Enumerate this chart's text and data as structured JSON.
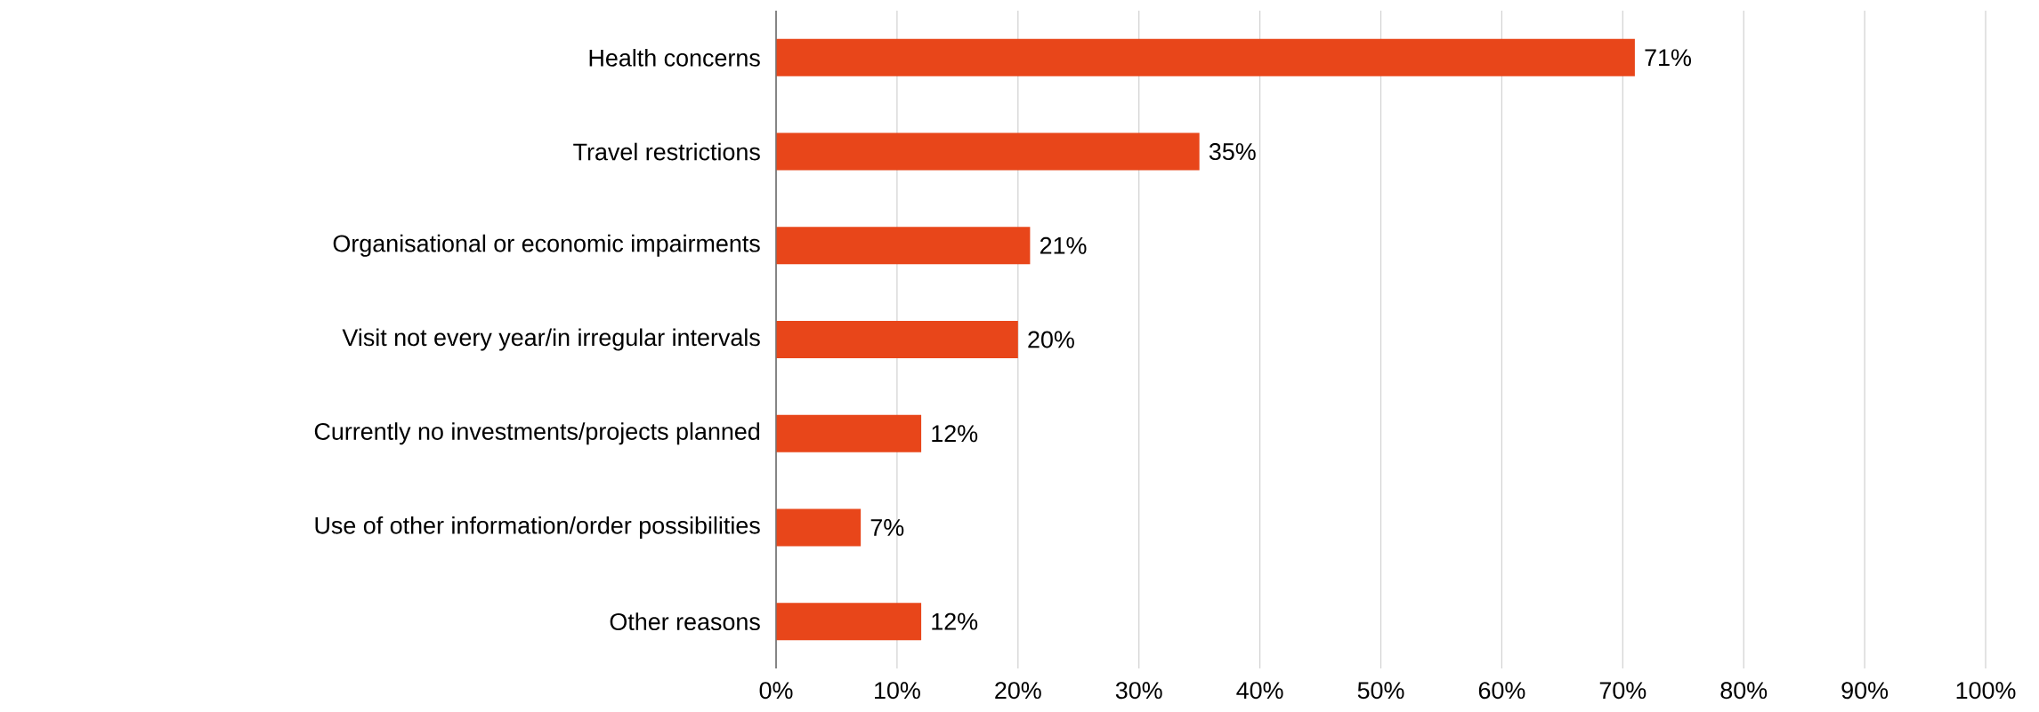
{
  "chart_data": {
    "type": "bar",
    "orientation": "horizontal",
    "categories": [
      "Health concerns",
      "Travel restrictions",
      "Organisational or economic impairments",
      "Visit not every year/in irregular intervals",
      "Currently no investments/projects planned",
      "Use of other information/order possibilities",
      "Other reasons"
    ],
    "values": [
      71,
      35,
      21,
      20,
      12,
      7,
      12
    ],
    "value_labels": [
      "71%",
      "35%",
      "21%",
      "20%",
      "12%",
      "7%",
      "12%"
    ],
    "color": "#e8461a",
    "xlim": [
      0,
      100
    ],
    "xticks": [
      {
        "value": 0,
        "label": "0%"
      },
      {
        "value": 10,
        "label": "10%"
      },
      {
        "value": 20,
        "label": "20%"
      },
      {
        "value": 30,
        "label": "30%"
      },
      {
        "value": 40,
        "label": "40%"
      },
      {
        "value": 50,
        "label": "50%"
      },
      {
        "value": 60,
        "label": "60%"
      },
      {
        "value": 70,
        "label": "70%"
      },
      {
        "value": 80,
        "label": "80%"
      },
      {
        "value": 90,
        "label": "90%"
      },
      {
        "value": 100,
        "label": "100%"
      }
    ],
    "grid": "x"
  }
}
